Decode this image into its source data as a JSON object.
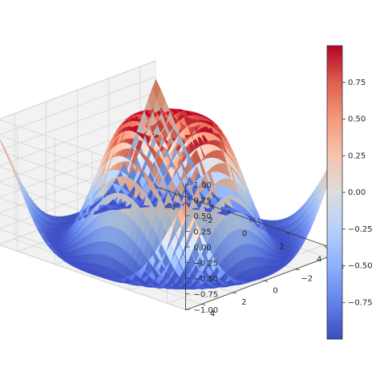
{
  "chart_data": {
    "type": "surface3d",
    "function": "z = sin(sqrt(x^2 + y^2))",
    "x_range": [
      -5,
      5
    ],
    "y_range": [
      -5,
      5
    ],
    "grid_step": 0.25,
    "zlim": [
      -1.01,
      1.01
    ],
    "grid": true,
    "legend": "none",
    "colormap": "coolwarm",
    "colormap_range": [
      -1,
      1
    ],
    "x_ticks": [
      -4,
      -2,
      0,
      2,
      4
    ],
    "x_tick_labels": [
      "−4",
      "−2",
      "0",
      "2",
      "4"
    ],
    "y_ticks": [
      -4,
      -2,
      0,
      2,
      4
    ],
    "y_tick_labels": [
      "−4",
      "−2",
      "0",
      "2",
      "4"
    ],
    "z_ticks": [
      -1.0,
      -0.75,
      -0.5,
      -0.25,
      0.0,
      0.25,
      0.5,
      0.75,
      1.0
    ],
    "z_tick_labels": [
      "−1.00",
      "−0.75",
      "−0.50",
      "−0.25",
      "0.00",
      "0.25",
      "0.50",
      "0.75",
      "1.00"
    ],
    "colorbar": {
      "ticks": [
        -0.75,
        -0.5,
        -0.25,
        0.0,
        0.25,
        0.5,
        0.75
      ],
      "tick_labels": [
        "−0.75",
        "−0.50",
        "−0.25",
        "0.00",
        "0.25",
        "0.50",
        "0.75"
      ],
      "orientation": "vertical",
      "placement": "right"
    }
  },
  "colors": {
    "background": "#ffffff",
    "pane": "#f2f2f2",
    "gridline": "#d0d0d0",
    "axis_line": "#333333",
    "text": "#262626",
    "cmap_low": "#3b4cc0",
    "cmap_mid": "#dddddd",
    "cmap_high": "#b40426"
  }
}
